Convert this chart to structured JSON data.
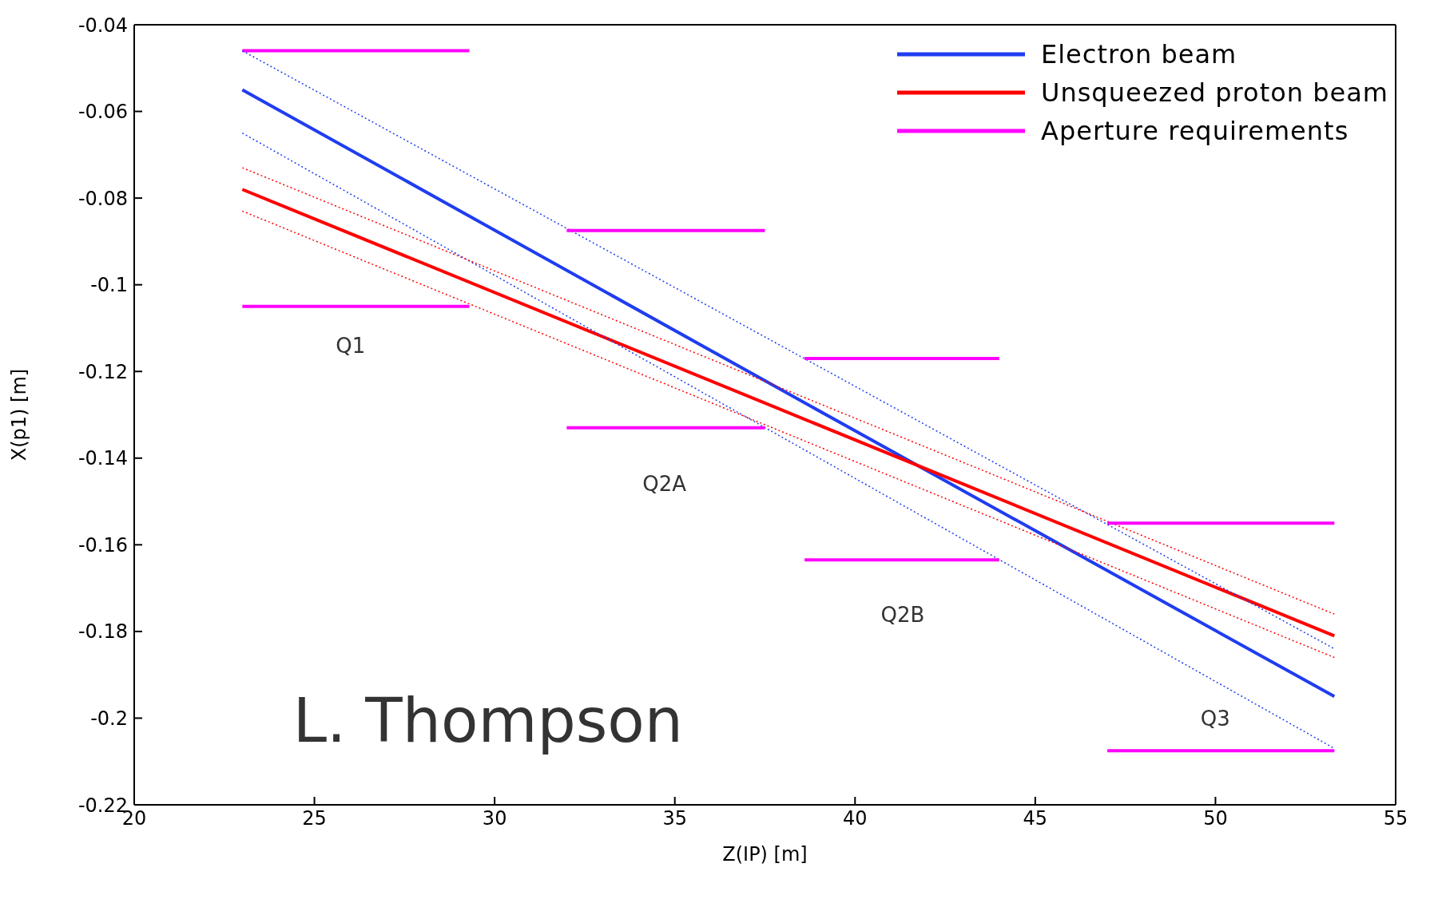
{
  "chart_data": {
    "type": "line",
    "xlabel": "Z(IP) [m]",
    "ylabel": "X(p1) [m]",
    "xlim": [
      20,
      55
    ],
    "xticks": [
      20,
      25,
      30,
      35,
      40,
      45,
      50,
      55
    ],
    "ylim": [
      -0.22,
      -0.04
    ],
    "yticks": [
      -0.22,
      -0.2,
      -0.18,
      -0.16,
      -0.14,
      -0.12,
      -0.1,
      -0.08,
      -0.06,
      -0.04
    ],
    "grid": false,
    "legend": "top right",
    "marker": "none",
    "series": [
      {
        "name": "Electron beam",
        "color": "#1f3df0",
        "x": [
          23,
          40,
          53.3
        ],
        "values": [
          -0.055,
          -0.1337,
          -0.195
        ]
      },
      {
        "name": "Unsqueezed proton beam",
        "color": "#ff0000",
        "x": [
          23,
          53.3
        ],
        "values": [
          -0.078,
          -0.181
        ]
      },
      {
        "name": "Aperture requirements",
        "color": "#ff00ff",
        "x": [
          23,
          29.3
        ],
        "values": [
          -0.046,
          -0.046
        ]
      },
      {
        "color": "#1f3df0",
        "line_style": "dotted",
        "x": [
          23,
          53.3
        ],
        "values": [
          -0.046,
          -0.184
        ]
      },
      {
        "color": "#1f3df0",
        "line_style": "dotted",
        "x": [
          23,
          53.3
        ],
        "values": [
          -0.065,
          -0.207
        ]
      },
      {
        "color": "#ff0000",
        "line_style": "dotted",
        "x": [
          23,
          53.3
        ],
        "values": [
          -0.073,
          -0.176
        ]
      },
      {
        "color": "#ff0000",
        "line_style": "dotted",
        "x": [
          23,
          53.3
        ],
        "values": [
          -0.083,
          -0.186
        ]
      },
      {
        "color": "#ff00ff",
        "x": [
          23,
          29.3
        ],
        "values": [
          -0.105,
          -0.105
        ]
      },
      {
        "color": "#ff00ff",
        "x": [
          32,
          37.5
        ],
        "values": [
          -0.0875,
          -0.0875
        ]
      },
      {
        "color": "#ff00ff",
        "x": [
          32,
          37.5
        ],
        "values": [
          -0.133,
          -0.133
        ]
      },
      {
        "color": "#ff00ff",
        "x": [
          38.6,
          44
        ],
        "values": [
          -0.117,
          -0.117
        ]
      },
      {
        "color": "#ff00ff",
        "x": [
          38.6,
          44
        ],
        "values": [
          -0.1635,
          -0.1635
        ]
      },
      {
        "color": "#ff00ff",
        "x": [
          47,
          53.3
        ],
        "values": [
          -0.155,
          -0.155
        ]
      },
      {
        "color": "#ff00ff",
        "x": [
          47,
          53.3
        ],
        "values": [
          -0.2075,
          -0.2075
        ]
      }
    ],
    "annotations": [
      "Q1",
      "Q2A",
      "Q2B",
      "Q3",
      "L. Thompson"
    ]
  }
}
